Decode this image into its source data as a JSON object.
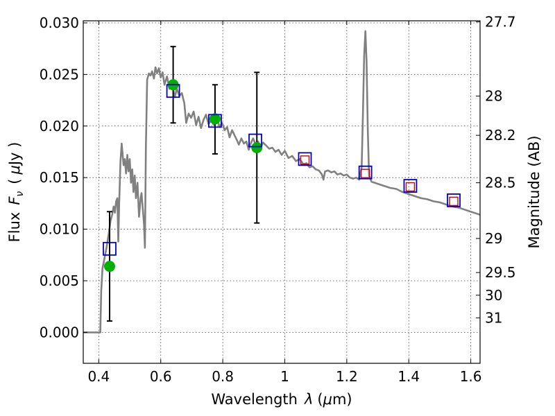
{
  "chart_data": {
    "type": "line",
    "xlabel_text": "Wavelength",
    "xlabel_symbol": "λ",
    "xlabel_unit_open": "(",
    "xlabel_unit_mu": "μ",
    "xlabel_unit_rest": "m)",
    "ylabel_text": "Flux",
    "ylabel_symbol_main": "F",
    "ylabel_symbol_sub": "ν",
    "ylabel_unit_open": "(",
    "ylabel_unit_mu": "μ",
    "ylabel_unit_rest": "Jy )",
    "y2label": "Magnitude (AB)",
    "xlim": [
      0.35,
      1.63
    ],
    "ylim": [
      -0.003,
      0.0302
    ],
    "grid": true,
    "x_ticks": [
      {
        "value": 0.4,
        "label": "0.4"
      },
      {
        "value": 0.6,
        "label": "0.6"
      },
      {
        "value": 0.8,
        "label": "0.8"
      },
      {
        "value": 1.0,
        "label": "1"
      },
      {
        "value": 1.2,
        "label": "1.2"
      },
      {
        "value": 1.4,
        "label": "1.4"
      },
      {
        "value": 1.6,
        "label": "1.6"
      }
    ],
    "y_ticks": [
      {
        "value": 0.0,
        "label": "0.000"
      },
      {
        "value": 0.005,
        "label": "0.005"
      },
      {
        "value": 0.01,
        "label": "0.010"
      },
      {
        "value": 0.015,
        "label": "0.015"
      },
      {
        "value": 0.02,
        "label": "0.020"
      },
      {
        "value": 0.025,
        "label": "0.025"
      },
      {
        "value": 0.03,
        "label": "0.030"
      }
    ],
    "y2_ticks": [
      {
        "flux": 0.0301,
        "label": "27.7"
      },
      {
        "flux": 0.0229,
        "label": "28"
      },
      {
        "flux": 0.0191,
        "label": "28.2"
      },
      {
        "flux": 0.0145,
        "label": "28.5"
      },
      {
        "flux": 0.0091,
        "label": "29"
      },
      {
        "flux": 0.0058,
        "label": "29.5"
      },
      {
        "flux": 0.0036,
        "label": "30"
      },
      {
        "flux": 0.0014,
        "label": "31"
      }
    ],
    "series": [
      {
        "type": "line",
        "color": "#808080",
        "points": [
          [
            0.35,
            0.0
          ],
          [
            0.4,
            0.0
          ],
          [
            0.405,
            0.0
          ],
          [
            0.408,
            0.004
          ],
          [
            0.412,
            0.0062
          ],
          [
            0.418,
            0.0071
          ],
          [
            0.425,
            0.0082
          ],
          [
            0.432,
            0.0095
          ],
          [
            0.438,
            0.0108
          ],
          [
            0.444,
            0.0115
          ],
          [
            0.448,
            0.0122
          ],
          [
            0.452,
            0.0116
          ],
          [
            0.456,
            0.0127
          ],
          [
            0.46,
            0.013
          ],
          [
            0.463,
            0.0088
          ],
          [
            0.466,
            0.0125
          ],
          [
            0.47,
            0.0165
          ],
          [
            0.474,
            0.0183
          ],
          [
            0.48,
            0.0162
          ],
          [
            0.484,
            0.0168
          ],
          [
            0.488,
            0.0154
          ],
          [
            0.492,
            0.0172
          ],
          [
            0.496,
            0.0156
          ],
          [
            0.5,
            0.0168
          ],
          [
            0.504,
            0.0145
          ],
          [
            0.508,
            0.0158
          ],
          [
            0.512,
            0.0136
          ],
          [
            0.516,
            0.0152
          ],
          [
            0.52,
            0.013
          ],
          [
            0.525,
            0.0145
          ],
          [
            0.53,
            0.0112
          ],
          [
            0.535,
            0.013
          ],
          [
            0.538,
            0.0135
          ],
          [
            0.542,
            0.012
          ],
          [
            0.546,
            0.0105
          ],
          [
            0.549,
            0.0082
          ],
          [
            0.552,
            0.018
          ],
          [
            0.556,
            0.0245
          ],
          [
            0.562,
            0.0251
          ],
          [
            0.567,
            0.0249
          ],
          [
            0.572,
            0.0253
          ],
          [
            0.578,
            0.0246
          ],
          [
            0.583,
            0.0257
          ],
          [
            0.588,
            0.0251
          ],
          [
            0.594,
            0.0256
          ],
          [
            0.6,
            0.0247
          ],
          [
            0.606,
            0.0252
          ],
          [
            0.612,
            0.024
          ],
          [
            0.62,
            0.0248
          ],
          [
            0.628,
            0.0236
          ],
          [
            0.636,
            0.0242
          ],
          [
            0.645,
            0.0228
          ],
          [
            0.652,
            0.0236
          ],
          [
            0.66,
            0.0229
          ],
          [
            0.668,
            0.0232
          ],
          [
            0.676,
            0.0222
          ],
          [
            0.682,
            0.0203
          ],
          [
            0.69,
            0.0212
          ],
          [
            0.698,
            0.0208
          ],
          [
            0.706,
            0.0214
          ],
          [
            0.714,
            0.0201
          ],
          [
            0.722,
            0.0209
          ],
          [
            0.73,
            0.0198
          ],
          [
            0.738,
            0.0206
          ],
          [
            0.746,
            0.0211
          ],
          [
            0.754,
            0.0202
          ],
          [
            0.762,
            0.0205
          ],
          [
            0.772,
            0.0201
          ],
          [
            0.782,
            0.0207
          ],
          [
            0.79,
            0.0199
          ],
          [
            0.798,
            0.0203
          ],
          [
            0.806,
            0.0196
          ],
          [
            0.814,
            0.0199
          ],
          [
            0.822,
            0.0189
          ],
          [
            0.83,
            0.0196
          ],
          [
            0.838,
            0.0191
          ],
          [
            0.846,
            0.0186
          ],
          [
            0.852,
            0.0182
          ],
          [
            0.86,
            0.0188
          ],
          [
            0.868,
            0.0183
          ],
          [
            0.876,
            0.0185
          ],
          [
            0.884,
            0.0177
          ],
          [
            0.89,
            0.0183
          ],
          [
            0.898,
            0.0188
          ],
          [
            0.906,
            0.0182
          ],
          [
            0.914,
            0.0185
          ],
          [
            0.922,
            0.0179
          ],
          [
            0.93,
            0.0184
          ],
          [
            0.94,
            0.0181
          ],
          [
            0.95,
            0.0178
          ],
          [
            0.96,
            0.0179
          ],
          [
            0.97,
            0.0175
          ],
          [
            0.98,
            0.0177
          ],
          [
            0.99,
            0.0172
          ],
          [
            1.0,
            0.0176
          ],
          [
            1.012,
            0.0169
          ],
          [
            1.024,
            0.0171
          ],
          [
            1.036,
            0.0166
          ],
          [
            1.048,
            0.0168
          ],
          [
            1.06,
            0.0163
          ],
          [
            1.07,
            0.0164
          ],
          [
            1.08,
            0.016
          ],
          [
            1.09,
            0.0161
          ],
          [
            1.1,
            0.0158
          ],
          [
            1.11,
            0.0157
          ],
          [
            1.12,
            0.0153
          ],
          [
            1.125,
            0.0148
          ],
          [
            1.13,
            0.0156
          ],
          [
            1.14,
            0.0157
          ],
          [
            1.15,
            0.0155
          ],
          [
            1.16,
            0.0156
          ],
          [
            1.17,
            0.0153
          ],
          [
            1.18,
            0.0154
          ],
          [
            1.19,
            0.0152
          ],
          [
            1.2,
            0.0153
          ],
          [
            1.21,
            0.015
          ],
          [
            1.22,
            0.0149
          ],
          [
            1.23,
            0.015
          ],
          [
            1.24,
            0.0148
          ],
          [
            1.248,
            0.016
          ],
          [
            1.252,
            0.021
          ],
          [
            1.256,
            0.0268
          ],
          [
            1.26,
            0.0292
          ],
          [
            1.264,
            0.0262
          ],
          [
            1.268,
            0.0195
          ],
          [
            1.272,
            0.0152
          ],
          [
            1.28,
            0.0146
          ],
          [
            1.3,
            0.0144
          ],
          [
            1.32,
            0.0142
          ],
          [
            1.34,
            0.014
          ],
          [
            1.36,
            0.0139
          ],
          [
            1.38,
            0.0136
          ],
          [
            1.4,
            0.0134
          ],
          [
            1.42,
            0.0132
          ],
          [
            1.44,
            0.013
          ],
          [
            1.46,
            0.0129
          ],
          [
            1.48,
            0.0127
          ],
          [
            1.5,
            0.0126
          ],
          [
            1.52,
            0.0124
          ],
          [
            1.54,
            0.0122
          ],
          [
            1.56,
            0.0121
          ],
          [
            1.58,
            0.0119
          ],
          [
            1.6,
            0.0117
          ],
          [
            1.63,
            0.0114
          ]
        ]
      },
      {
        "type": "errorbar",
        "color": "#000000",
        "points": [
          {
            "x": 0.435,
            "y": 0.0064,
            "low": 0.0011,
            "high": 0.0117
          },
          {
            "x": 0.64,
            "y": 0.024,
            "low": 0.0203,
            "high": 0.0277
          },
          {
            "x": 0.775,
            "y": 0.0207,
            "low": 0.0173,
            "high": 0.024
          },
          {
            "x": 0.91,
            "y": 0.0179,
            "low": 0.0106,
            "high": 0.0252
          }
        ]
      },
      {
        "type": "scatter",
        "marker": "circle",
        "color": "#00b000",
        "points": [
          {
            "x": 0.435,
            "y": 0.0064
          },
          {
            "x": 0.64,
            "y": 0.024
          },
          {
            "x": 0.775,
            "y": 0.0207
          },
          {
            "x": 0.91,
            "y": 0.0179
          }
        ]
      },
      {
        "type": "scatter",
        "marker": "square",
        "color": "#0000cc",
        "points": [
          {
            "x": 0.435,
            "y": 0.0081
          },
          {
            "x": 0.64,
            "y": 0.0234
          },
          {
            "x": 0.775,
            "y": 0.0205
          },
          {
            "x": 0.905,
            "y": 0.0186
          },
          {
            "x": 1.065,
            "y": 0.0168
          },
          {
            "x": 1.26,
            "y": 0.0155
          },
          {
            "x": 1.405,
            "y": 0.0142
          },
          {
            "x": 1.545,
            "y": 0.0128
          }
        ]
      },
      {
        "type": "scatter",
        "marker": "square",
        "color": "#cc0000",
        "points": [
          {
            "x": 1.065,
            "y": 0.0167
          },
          {
            "x": 1.26,
            "y": 0.0154
          },
          {
            "x": 1.405,
            "y": 0.0141
          },
          {
            "x": 1.545,
            "y": 0.0127
          }
        ]
      }
    ]
  }
}
